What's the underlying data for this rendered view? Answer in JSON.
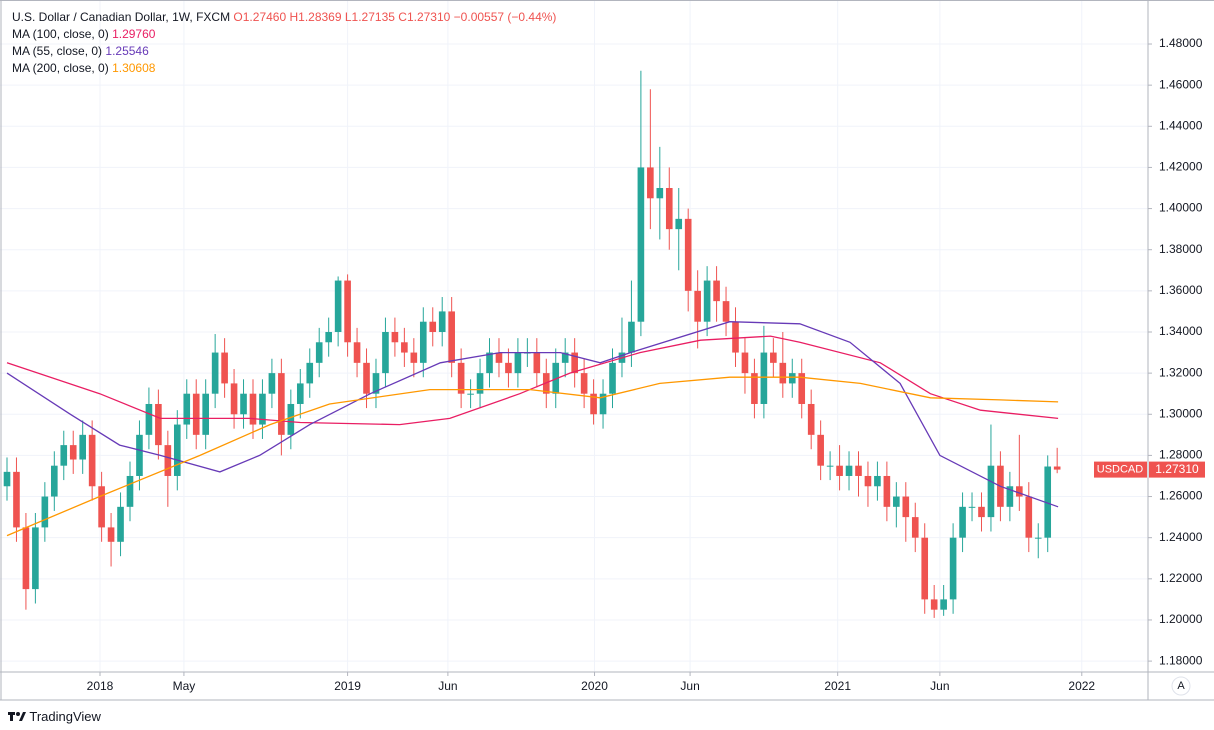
{
  "footer": {
    "brand": "TradingView"
  },
  "chart_data": {
    "type": "candlestick",
    "title": "U.S. Dollar / Canadian Dollar, 1W, FXCM",
    "header": {
      "open": "O1.27460",
      "high": "H1.28369",
      "low": "L1.27135",
      "close": "C1.27310",
      "change": "−0.00557 (−0.44%)"
    },
    "symbol": "USDCAD",
    "last_price": 1.2731,
    "last_price_label": "1.27310",
    "up_color": "#26a69a",
    "down_color": "#ef5350",
    "grid": true,
    "ylim": [
      1.1747,
      1.5014
    ],
    "yticks": [
      {
        "value": 1.18,
        "label": "1.18000"
      },
      {
        "value": 1.2,
        "label": "1.20000"
      },
      {
        "value": 1.22,
        "label": "1.22000"
      },
      {
        "value": 1.24,
        "label": "1.24000"
      },
      {
        "value": 1.26,
        "label": "1.26000"
      },
      {
        "value": 1.28,
        "label": "1.28000"
      },
      {
        "value": 1.3,
        "label": "1.30000"
      },
      {
        "value": 1.32,
        "label": "1.32000"
      },
      {
        "value": 1.34,
        "label": "1.34000"
      },
      {
        "value": 1.36,
        "label": "1.36000"
      },
      {
        "value": 1.38,
        "label": "1.38000"
      },
      {
        "value": 1.4,
        "label": "1.40000"
      },
      {
        "value": 1.42,
        "label": "1.42000"
      },
      {
        "value": 1.44,
        "label": "1.44000"
      },
      {
        "value": 1.46,
        "label": "1.46000"
      },
      {
        "value": 1.48,
        "label": "1.48000"
      }
    ],
    "xlim": [
      -0.74,
      120.6
    ],
    "xticks": [
      {
        "value": 9.83,
        "label": "2018"
      },
      {
        "value": 18.7,
        "label": "May"
      },
      {
        "value": 36.0,
        "label": "2019"
      },
      {
        "value": 46.6,
        "label": "Jun"
      },
      {
        "value": 62.1,
        "label": "2020"
      },
      {
        "value": 72.2,
        "label": "Jun"
      },
      {
        "value": 87.8,
        "label": "2021"
      },
      {
        "value": 98.6,
        "label": "Jun"
      },
      {
        "value": 113.6,
        "label": "2022"
      }
    ],
    "scale_button": "A",
    "candles": {
      "open": [
        1.265,
        1.272,
        1.245,
        1.215,
        1.245,
        1.26,
        1.275,
        1.285,
        1.278,
        1.29,
        1.265,
        1.245,
        1.238,
        1.255,
        1.27,
        1.29,
        1.305,
        1.285,
        1.27,
        1.295,
        1.31,
        1.29,
        1.31,
        1.33,
        1.315,
        1.3,
        1.31,
        1.295,
        1.31,
        1.32,
        1.29,
        1.305,
        1.315,
        1.325,
        1.335,
        1.34,
        1.365,
        1.335,
        1.325,
        1.31,
        1.32,
        1.34,
        1.335,
        1.33,
        1.325,
        1.345,
        1.34,
        1.35,
        1.325,
        1.31,
        1.31,
        1.32,
        1.33,
        1.325,
        1.32,
        1.33,
        1.33,
        1.32,
        1.31,
        1.325,
        1.33,
        1.32,
        1.31,
        1.3,
        1.31,
        1.325,
        1.33,
        1.345,
        1.42,
        1.405,
        1.41,
        1.39,
        1.395,
        1.36,
        1.345,
        1.365,
        1.355,
        1.345,
        1.33,
        1.32,
        1.305,
        1.33,
        1.325,
        1.315,
        1.32,
        1.305,
        1.29,
        1.275,
        1.275,
        1.27,
        1.275,
        1.27,
        1.265,
        1.27,
        1.255,
        1.26,
        1.25,
        1.24,
        1.21,
        1.205,
        1.21,
        1.24,
        1.255,
        1.255,
        1.25,
        1.275,
        1.255,
        1.265,
        1.26,
        1.24,
        1.24,
        1.2746
      ],
      "high": [
        1.279,
        1.279,
        1.252,
        1.252,
        1.267,
        1.282,
        1.292,
        1.292,
        1.297,
        1.297,
        1.272,
        1.252,
        1.262,
        1.277,
        1.297,
        1.313,
        1.312,
        1.292,
        1.302,
        1.317,
        1.317,
        1.317,
        1.339,
        1.337,
        1.322,
        1.317,
        1.317,
        1.317,
        1.327,
        1.327,
        1.312,
        1.322,
        1.332,
        1.342,
        1.347,
        1.367,
        1.368,
        1.342,
        1.332,
        1.327,
        1.347,
        1.347,
        1.342,
        1.337,
        1.352,
        1.352,
        1.357,
        1.357,
        1.332,
        1.317,
        1.327,
        1.337,
        1.337,
        1.332,
        1.337,
        1.337,
        1.337,
        1.327,
        1.332,
        1.337,
        1.337,
        1.327,
        1.317,
        1.317,
        1.332,
        1.347,
        1.365,
        1.467,
        1.458,
        1.43,
        1.42,
        1.41,
        1.4,
        1.37,
        1.372,
        1.372,
        1.362,
        1.352,
        1.337,
        1.327,
        1.343,
        1.337,
        1.34,
        1.327,
        1.327,
        1.312,
        1.297,
        1.282,
        1.285,
        1.282,
        1.282,
        1.277,
        1.277,
        1.277,
        1.267,
        1.267,
        1.257,
        1.247,
        1.217,
        1.217,
        1.247,
        1.262,
        1.262,
        1.262,
        1.295,
        1.282,
        1.272,
        1.29,
        1.267,
        1.247,
        1.28,
        1.28369
      ],
      "low": [
        1.258,
        1.238,
        1.205,
        1.208,
        1.238,
        1.253,
        1.268,
        1.271,
        1.271,
        1.258,
        1.238,
        1.226,
        1.231,
        1.248,
        1.263,
        1.283,
        1.278,
        1.255,
        1.263,
        1.288,
        1.283,
        1.283,
        1.303,
        1.308,
        1.293,
        1.293,
        1.288,
        1.288,
        1.303,
        1.28,
        1.283,
        1.298,
        1.308,
        1.318,
        1.328,
        1.333,
        1.328,
        1.318,
        1.303,
        1.303,
        1.313,
        1.328,
        1.323,
        1.318,
        1.318,
        1.333,
        1.333,
        1.318,
        1.303,
        1.303,
        1.303,
        1.313,
        1.318,
        1.313,
        1.313,
        1.323,
        1.313,
        1.303,
        1.303,
        1.318,
        1.313,
        1.303,
        1.295,
        1.293,
        1.303,
        1.318,
        1.323,
        1.338,
        1.39,
        1.385,
        1.38,
        1.37,
        1.35,
        1.332,
        1.338,
        1.345,
        1.338,
        1.323,
        1.31,
        1.298,
        1.298,
        1.318,
        1.308,
        1.308,
        1.298,
        1.283,
        1.268,
        1.268,
        1.263,
        1.263,
        1.26,
        1.255,
        1.258,
        1.248,
        1.245,
        1.238,
        1.233,
        1.203,
        1.201,
        1.202,
        1.203,
        1.233,
        1.248,
        1.243,
        1.243,
        1.248,
        1.248,
        1.253,
        1.233,
        1.23,
        1.233,
        1.27135
      ],
      "close": [
        1.272,
        1.245,
        1.215,
        1.245,
        1.26,
        1.275,
        1.285,
        1.278,
        1.29,
        1.265,
        1.245,
        1.238,
        1.255,
        1.27,
        1.29,
        1.305,
        1.285,
        1.27,
        1.295,
        1.31,
        1.29,
        1.31,
        1.33,
        1.315,
        1.3,
        1.31,
        1.295,
        1.31,
        1.32,
        1.29,
        1.305,
        1.315,
        1.325,
        1.335,
        1.34,
        1.365,
        1.335,
        1.325,
        1.31,
        1.32,
        1.34,
        1.335,
        1.33,
        1.325,
        1.345,
        1.34,
        1.35,
        1.325,
        1.31,
        1.31,
        1.32,
        1.33,
        1.325,
        1.32,
        1.33,
        1.33,
        1.32,
        1.31,
        1.325,
        1.33,
        1.32,
        1.31,
        1.3,
        1.31,
        1.325,
        1.33,
        1.345,
        1.42,
        1.405,
        1.41,
        1.39,
        1.395,
        1.36,
        1.345,
        1.365,
        1.355,
        1.345,
        1.33,
        1.32,
        1.305,
        1.33,
        1.325,
        1.315,
        1.32,
        1.305,
        1.29,
        1.275,
        1.275,
        1.27,
        1.275,
        1.27,
        1.265,
        1.27,
        1.255,
        1.26,
        1.25,
        1.24,
        1.21,
        1.205,
        1.21,
        1.24,
        1.255,
        1.255,
        1.25,
        1.275,
        1.255,
        1.265,
        1.26,
        1.24,
        1.24,
        1.2746,
        1.2731
      ]
    },
    "series": [
      {
        "name": "MA (100, close, 0)",
        "last_label": "1.29760",
        "color": "#e91e63",
        "x": [
          0,
          9.8,
          16.2,
          25.7,
          31,
          41.5,
          46.8,
          54.2,
          59.5,
          66.9,
          73.3,
          80.7,
          83.8,
          92.3,
          97.6,
          102.9,
          111.1
        ],
        "values": [
          1.325,
          1.31,
          1.298,
          1.298,
          1.296,
          1.295,
          1.298,
          1.31,
          1.32,
          1.33,
          1.336,
          1.338,
          1.335,
          1.325,
          1.31,
          1.302,
          1.298
        ]
      },
      {
        "name": "MA (55, close, 0)",
        "last_label": "1.25546",
        "color": "#673ab7",
        "x": [
          0,
          6.7,
          11.9,
          16.2,
          22.5,
          26.7,
          32,
          38.4,
          45.8,
          52.1,
          58.5,
          62.7,
          65.9,
          76.4,
          83.8,
          89.1,
          94.4,
          98.6,
          105,
          111.1
        ],
        "values": [
          1.32,
          1.3,
          1.285,
          1.28,
          1.272,
          1.28,
          1.295,
          1.31,
          1.325,
          1.33,
          1.33,
          1.325,
          1.33,
          1.345,
          1.344,
          1.335,
          1.315,
          1.28,
          1.265,
          1.255
        ]
      },
      {
        "name": "MA (200, close, 0)",
        "last_label": "1.30608",
        "color": "#ff9800",
        "x": [
          0,
          9.8,
          20.4,
          27.8,
          34.1,
          44.7,
          55.3,
          62.7,
          69,
          76.4,
          83.8,
          90.2,
          97.6,
          105,
          111.1
        ],
        "values": [
          1.241,
          1.26,
          1.28,
          1.295,
          1.305,
          1.312,
          1.312,
          1.308,
          1.315,
          1.318,
          1.318,
          1.315,
          1.308,
          1.307,
          1.306
        ]
      }
    ]
  }
}
